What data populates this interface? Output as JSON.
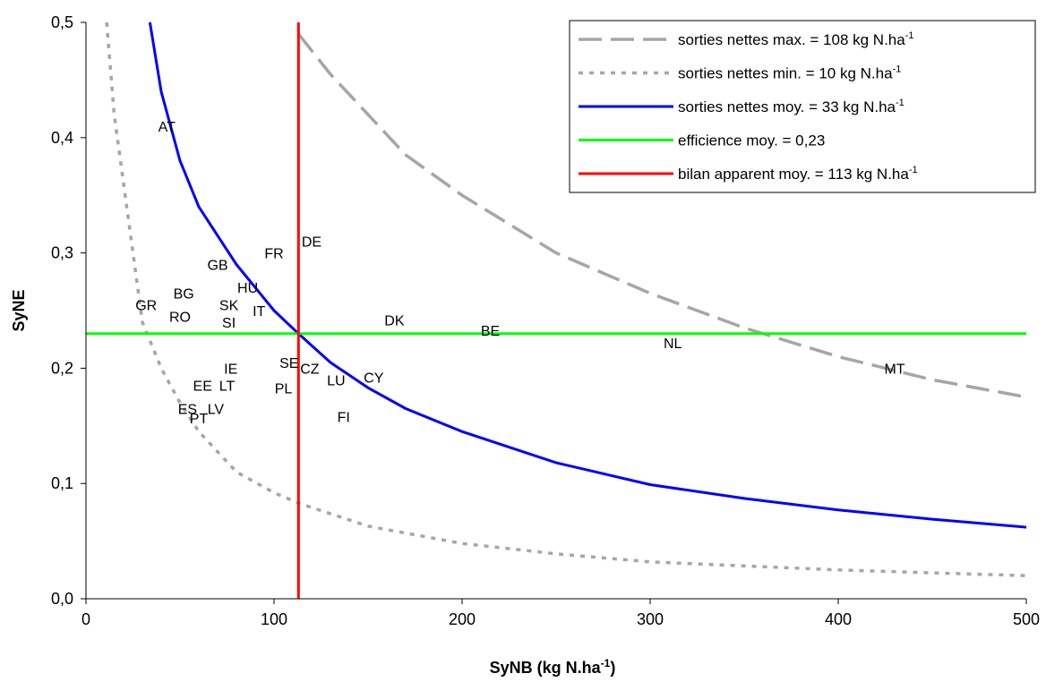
{
  "chart_data": {
    "type": "line",
    "xlabel": "SyNB (kg N.ha",
    "xlabel_sup": "-1",
    "xlabel_suffix": ")",
    "ylabel": "SyNE",
    "xlim": [
      0,
      500
    ],
    "ylim": [
      0,
      0.5
    ],
    "x_ticks": [
      0,
      100,
      200,
      300,
      400,
      500
    ],
    "x_tick_labels": [
      "0",
      "100",
      "200",
      "300",
      "400",
      "500"
    ],
    "y_ticks": [
      0,
      0.1,
      0.2,
      0.3,
      0.4,
      0.5
    ],
    "y_tick_labels": [
      "0,0",
      "0,1",
      "0,2",
      "0,3",
      "0,4",
      "0,5"
    ],
    "grid": false,
    "legend_position": "top-right",
    "series": [
      {
        "name": "sorties nettes max. = 108 kg N.ha",
        "name_sup": "-1",
        "color": "#a6a6a6",
        "dash": "long-dash",
        "x": [
          113,
          130,
          150,
          170,
          200,
          250,
          300,
          350,
          400,
          450,
          500
        ],
        "y": [
          0.49,
          0.455,
          0.42,
          0.385,
          0.35,
          0.3,
          0.265,
          0.235,
          0.21,
          0.19,
          0.175
        ]
      },
      {
        "name": "sorties nettes min. = 10 kg N.ha",
        "name_sup": "-1",
        "color": "#a6a6a6",
        "dash": "dotted",
        "x": [
          11,
          15,
          20,
          25,
          30,
          40,
          50,
          60,
          80,
          100,
          113,
          150,
          200,
          250,
          300,
          400,
          500
        ],
        "y": [
          0.5,
          0.42,
          0.36,
          0.3,
          0.24,
          0.2,
          0.17,
          0.145,
          0.11,
          0.092,
          0.083,
          0.063,
          0.048,
          0.039,
          0.032,
          0.025,
          0.02
        ]
      },
      {
        "name": "sorties nettes moy. = 33 kg N.ha",
        "name_sup": "-1",
        "color": "#0000ff",
        "dash": "solid",
        "x": [
          34,
          40,
          50,
          60,
          70,
          80,
          90,
          100,
          113,
          130,
          150,
          170,
          200,
          250,
          300,
          350,
          400,
          450,
          500
        ],
        "y": [
          0.5,
          0.44,
          0.38,
          0.34,
          0.315,
          0.29,
          0.27,
          0.25,
          0.23,
          0.205,
          0.183,
          0.165,
          0.145,
          0.118,
          0.099,
          0.087,
          0.077,
          0.069,
          0.062
        ]
      },
      {
        "name": "efficience moy. = 0,23",
        "name_sup": "",
        "color": "#00ff00",
        "dash": "solid",
        "x": [
          0,
          500
        ],
        "y": [
          0.23,
          0.23
        ]
      },
      {
        "name": "bilan apparent moy. = 113 kg N.ha",
        "name_sup": "-1",
        "color": "#ff0000",
        "dash": "solid",
        "x": [
          113,
          113
        ],
        "y": [
          0,
          0.5
        ]
      }
    ],
    "points": [
      {
        "label": "AT",
        "x": 43,
        "y": 0.41
      },
      {
        "label": "DE",
        "x": 120,
        "y": 0.31
      },
      {
        "label": "FR",
        "x": 100,
        "y": 0.3
      },
      {
        "label": "GB",
        "x": 70,
        "y": 0.29
      },
      {
        "label": "HU",
        "x": 86,
        "y": 0.27
      },
      {
        "label": "BG",
        "x": 52,
        "y": 0.265
      },
      {
        "label": "GR",
        "x": 32,
        "y": 0.255
      },
      {
        "label": "SK",
        "x": 76,
        "y": 0.255
      },
      {
        "label": "IT",
        "x": 92,
        "y": 0.25
      },
      {
        "label": "RO",
        "x": 50,
        "y": 0.245
      },
      {
        "label": "SI",
        "x": 76,
        "y": 0.24
      },
      {
        "label": "DK",
        "x": 164,
        "y": 0.242
      },
      {
        "label": "BE",
        "x": 215,
        "y": 0.233
      },
      {
        "label": "NL",
        "x": 312,
        "y": 0.222
      },
      {
        "label": "MT",
        "x": 430,
        "y": 0.2
      },
      {
        "label": "SE",
        "x": 108,
        "y": 0.205
      },
      {
        "label": "CZ",
        "x": 119,
        "y": 0.2
      },
      {
        "label": "IE",
        "x": 77,
        "y": 0.2
      },
      {
        "label": "LU",
        "x": 133,
        "y": 0.19
      },
      {
        "label": "CY",
        "x": 153,
        "y": 0.192
      },
      {
        "label": "EE",
        "x": 62,
        "y": 0.185
      },
      {
        "label": "LT",
        "x": 75,
        "y": 0.185
      },
      {
        "label": "PL",
        "x": 105,
        "y": 0.183
      },
      {
        "label": "ES",
        "x": 54,
        "y": 0.165
      },
      {
        "label": "LV",
        "x": 69,
        "y": 0.165
      },
      {
        "label": "PT",
        "x": 60,
        "y": 0.157
      },
      {
        "label": "FI",
        "x": 137,
        "y": 0.158
      }
    ]
  }
}
